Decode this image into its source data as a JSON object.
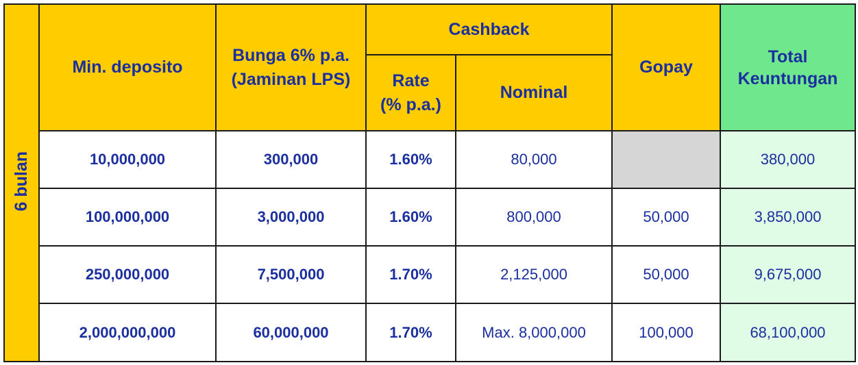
{
  "period_label": "6 bulan",
  "headers": {
    "min_deposit": "Min. deposito",
    "interest_line1": "Bunga 6% p.a.",
    "interest_line2": "(Jaminan LPS)",
    "cashback": "Cashback",
    "rate_line1": "Rate",
    "rate_line2": "(% p.a.)",
    "nominal": "Nominal",
    "gopay": "Gopay",
    "total_line1": "Total",
    "total_line2": "Keuntungan"
  },
  "rows": [
    {
      "min_deposit": "10,000,000",
      "interest": "300,000",
      "rate": "1.60%",
      "nominal": "80,000",
      "gopay": "",
      "total": "380,000"
    },
    {
      "min_deposit": "100,000,000",
      "interest": "3,000,000",
      "rate": "1.60%",
      "nominal": "800,000",
      "gopay": "50,000",
      "total": "3,850,000"
    },
    {
      "min_deposit": "250,000,000",
      "interest": "7,500,000",
      "rate": "1.70%",
      "nominal": "2,125,000",
      "gopay": "50,000",
      "total": "9,675,000"
    },
    {
      "min_deposit": "2,000,000,000",
      "interest": "60,000,000",
      "rate": "1.70%",
      "nominal": "Max. 8,000,000",
      "gopay": "100,000",
      "total": "68,100,000"
    }
  ],
  "colors": {
    "header_yellow": "#ffcc00",
    "header_green": "#6fe88d",
    "total_cell_green": "#e0fbe6",
    "empty_cell_grey": "#d6d6d6",
    "text_blue": "#1b2f9e"
  }
}
